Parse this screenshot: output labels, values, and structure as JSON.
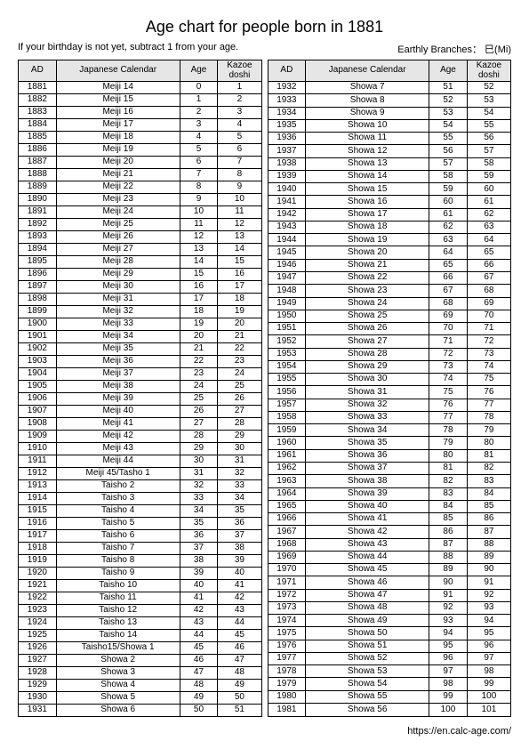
{
  "title": "Age chart for people born in 1881",
  "note": "If your birthday is not yet, subtract 1 from your age.",
  "branches": "Earthly Branches： 巳(Mi)",
  "footer": "https://en.calc-age.com/",
  "headers": {
    "ad": "AD",
    "jc": "Japanese Calendar",
    "age": "Age",
    "kazoe1": "Kazoe",
    "kazoe2": "doshi"
  },
  "left": [
    {
      "ad": "1881",
      "jc": "Meiji 14",
      "age": "0",
      "kz": "1"
    },
    {
      "ad": "1882",
      "jc": "Meiji 15",
      "age": "1",
      "kz": "2"
    },
    {
      "ad": "1883",
      "jc": "Meiji 16",
      "age": "2",
      "kz": "3"
    },
    {
      "ad": "1884",
      "jc": "Meiji 17",
      "age": "3",
      "kz": "4"
    },
    {
      "ad": "1885",
      "jc": "Meiji 18",
      "age": "4",
      "kz": "5"
    },
    {
      "ad": "1886",
      "jc": "Meiji 19",
      "age": "5",
      "kz": "6"
    },
    {
      "ad": "1887",
      "jc": "Meiji 20",
      "age": "6",
      "kz": "7"
    },
    {
      "ad": "1888",
      "jc": "Meiji 21",
      "age": "7",
      "kz": "8"
    },
    {
      "ad": "1889",
      "jc": "Meiji 22",
      "age": "8",
      "kz": "9"
    },
    {
      "ad": "1890",
      "jc": "Meiji 23",
      "age": "9",
      "kz": "10"
    },
    {
      "ad": "1891",
      "jc": "Meiji 24",
      "age": "10",
      "kz": "11"
    },
    {
      "ad": "1892",
      "jc": "Meiji 25",
      "age": "11",
      "kz": "12"
    },
    {
      "ad": "1893",
      "jc": "Meiji 26",
      "age": "12",
      "kz": "13"
    },
    {
      "ad": "1894",
      "jc": "Meiji 27",
      "age": "13",
      "kz": "14"
    },
    {
      "ad": "1895",
      "jc": "Meiji 28",
      "age": "14",
      "kz": "15"
    },
    {
      "ad": "1896",
      "jc": "Meiji 29",
      "age": "15",
      "kz": "16"
    },
    {
      "ad": "1897",
      "jc": "Meiji 30",
      "age": "16",
      "kz": "17"
    },
    {
      "ad": "1898",
      "jc": "Meiji 31",
      "age": "17",
      "kz": "18"
    },
    {
      "ad": "1899",
      "jc": "Meiji 32",
      "age": "18",
      "kz": "19"
    },
    {
      "ad": "1900",
      "jc": "Meiji 33",
      "age": "19",
      "kz": "20"
    },
    {
      "ad": "1901",
      "jc": "Meiji 34",
      "age": "20",
      "kz": "21"
    },
    {
      "ad": "1902",
      "jc": "Meiji 35",
      "age": "21",
      "kz": "22"
    },
    {
      "ad": "1903",
      "jc": "Meiji 36",
      "age": "22",
      "kz": "23"
    },
    {
      "ad": "1904",
      "jc": "Meiji 37",
      "age": "23",
      "kz": "24"
    },
    {
      "ad": "1905",
      "jc": "Meiji 38",
      "age": "24",
      "kz": "25"
    },
    {
      "ad": "1906",
      "jc": "Meiji 39",
      "age": "25",
      "kz": "26"
    },
    {
      "ad": "1907",
      "jc": "Meiji 40",
      "age": "26",
      "kz": "27"
    },
    {
      "ad": "1908",
      "jc": "Meiji 41",
      "age": "27",
      "kz": "28"
    },
    {
      "ad": "1909",
      "jc": "Meiji 42",
      "age": "28",
      "kz": "29"
    },
    {
      "ad": "1910",
      "jc": "Meiji 43",
      "age": "29",
      "kz": "30"
    },
    {
      "ad": "1911",
      "jc": "Meiji 44",
      "age": "30",
      "kz": "31"
    },
    {
      "ad": "1912",
      "jc": "Meiji 45/Tasho 1",
      "age": "31",
      "kz": "32"
    },
    {
      "ad": "1913",
      "jc": "Taisho 2",
      "age": "32",
      "kz": "33"
    },
    {
      "ad": "1914",
      "jc": "Taisho 3",
      "age": "33",
      "kz": "34"
    },
    {
      "ad": "1915",
      "jc": "Taisho 4",
      "age": "34",
      "kz": "35"
    },
    {
      "ad": "1916",
      "jc": "Taisho 5",
      "age": "35",
      "kz": "36"
    },
    {
      "ad": "1917",
      "jc": "Taisho 6",
      "age": "36",
      "kz": "37"
    },
    {
      "ad": "1918",
      "jc": "Taisho 7",
      "age": "37",
      "kz": "38"
    },
    {
      "ad": "1919",
      "jc": "Taisho 8",
      "age": "38",
      "kz": "39"
    },
    {
      "ad": "1920",
      "jc": "Taisho 9",
      "age": "39",
      "kz": "40"
    },
    {
      "ad": "1921",
      "jc": "Taisho 10",
      "age": "40",
      "kz": "41"
    },
    {
      "ad": "1922",
      "jc": "Taisho 11",
      "age": "41",
      "kz": "42"
    },
    {
      "ad": "1923",
      "jc": "Taisho 12",
      "age": "42",
      "kz": "43"
    },
    {
      "ad": "1924",
      "jc": "Taisho 13",
      "age": "43",
      "kz": "44"
    },
    {
      "ad": "1925",
      "jc": "Taisho 14",
      "age": "44",
      "kz": "45"
    },
    {
      "ad": "1926",
      "jc": "Taisho15/Showa 1",
      "age": "45",
      "kz": "46"
    },
    {
      "ad": "1927",
      "jc": "Showa 2",
      "age": "46",
      "kz": "47"
    },
    {
      "ad": "1928",
      "jc": "Showa 3",
      "age": "47",
      "kz": "48"
    },
    {
      "ad": "1929",
      "jc": "Showa 4",
      "age": "48",
      "kz": "49"
    },
    {
      "ad": "1930",
      "jc": "Showa 5",
      "age": "49",
      "kz": "50"
    },
    {
      "ad": "1931",
      "jc": "Showa 6",
      "age": "50",
      "kz": "51"
    }
  ],
  "right": [
    {
      "ad": "1932",
      "jc": "Showa 7",
      "age": "51",
      "kz": "52"
    },
    {
      "ad": "1933",
      "jc": "Showa 8",
      "age": "52",
      "kz": "53"
    },
    {
      "ad": "1934",
      "jc": "Showa 9",
      "age": "53",
      "kz": "54"
    },
    {
      "ad": "1935",
      "jc": "Showa 10",
      "age": "54",
      "kz": "55"
    },
    {
      "ad": "1936",
      "jc": "Showa 11",
      "age": "55",
      "kz": "56"
    },
    {
      "ad": "1937",
      "jc": "Showa 12",
      "age": "56",
      "kz": "57"
    },
    {
      "ad": "1938",
      "jc": "Showa 13",
      "age": "57",
      "kz": "58"
    },
    {
      "ad": "1939",
      "jc": "Showa 14",
      "age": "58",
      "kz": "59"
    },
    {
      "ad": "1940",
      "jc": "Showa 15",
      "age": "59",
      "kz": "60"
    },
    {
      "ad": "1941",
      "jc": "Showa 16",
      "age": "60",
      "kz": "61"
    },
    {
      "ad": "1942",
      "jc": "Showa 17",
      "age": "61",
      "kz": "62"
    },
    {
      "ad": "1943",
      "jc": "Showa 18",
      "age": "62",
      "kz": "63"
    },
    {
      "ad": "1944",
      "jc": "Showa 19",
      "age": "63",
      "kz": "64"
    },
    {
      "ad": "1945",
      "jc": "Showa 20",
      "age": "64",
      "kz": "65"
    },
    {
      "ad": "1946",
      "jc": "Showa 21",
      "age": "65",
      "kz": "66"
    },
    {
      "ad": "1947",
      "jc": "Showa 22",
      "age": "66",
      "kz": "67"
    },
    {
      "ad": "1948",
      "jc": "Showa 23",
      "age": "67",
      "kz": "68"
    },
    {
      "ad": "1949",
      "jc": "Showa 24",
      "age": "68",
      "kz": "69"
    },
    {
      "ad": "1950",
      "jc": "Showa 25",
      "age": "69",
      "kz": "70"
    },
    {
      "ad": "1951",
      "jc": "Showa 26",
      "age": "70",
      "kz": "71"
    },
    {
      "ad": "1952",
      "jc": "Showa 27",
      "age": "71",
      "kz": "72"
    },
    {
      "ad": "1953",
      "jc": "Showa 28",
      "age": "72",
      "kz": "73"
    },
    {
      "ad": "1954",
      "jc": "Showa 29",
      "age": "73",
      "kz": "74"
    },
    {
      "ad": "1955",
      "jc": "Showa 30",
      "age": "74",
      "kz": "75"
    },
    {
      "ad": "1956",
      "jc": "Showa 31",
      "age": "75",
      "kz": "76"
    },
    {
      "ad": "1957",
      "jc": "Showa 32",
      "age": "76",
      "kz": "77"
    },
    {
      "ad": "1958",
      "jc": "Showa 33",
      "age": "77",
      "kz": "78"
    },
    {
      "ad": "1959",
      "jc": "Showa 34",
      "age": "78",
      "kz": "79"
    },
    {
      "ad": "1960",
      "jc": "Showa 35",
      "age": "79",
      "kz": "80"
    },
    {
      "ad": "1961",
      "jc": "Showa 36",
      "age": "80",
      "kz": "81"
    },
    {
      "ad": "1962",
      "jc": "Showa 37",
      "age": "81",
      "kz": "82"
    },
    {
      "ad": "1963",
      "jc": "Showa 38",
      "age": "82",
      "kz": "83"
    },
    {
      "ad": "1964",
      "jc": "Showa 39",
      "age": "83",
      "kz": "84"
    },
    {
      "ad": "1965",
      "jc": "Showa 40",
      "age": "84",
      "kz": "85"
    },
    {
      "ad": "1966",
      "jc": "Showa 41",
      "age": "85",
      "kz": "86"
    },
    {
      "ad": "1967",
      "jc": "Showa 42",
      "age": "86",
      "kz": "87"
    },
    {
      "ad": "1968",
      "jc": "Showa 43",
      "age": "87",
      "kz": "88"
    },
    {
      "ad": "1969",
      "jc": "Showa 44",
      "age": "88",
      "kz": "89"
    },
    {
      "ad": "1970",
      "jc": "Showa 45",
      "age": "89",
      "kz": "90"
    },
    {
      "ad": "1971",
      "jc": "Showa 46",
      "age": "90",
      "kz": "91"
    },
    {
      "ad": "1972",
      "jc": "Showa 47",
      "age": "91",
      "kz": "92"
    },
    {
      "ad": "1973",
      "jc": "Showa 48",
      "age": "92",
      "kz": "93"
    },
    {
      "ad": "1974",
      "jc": "Showa 49",
      "age": "93",
      "kz": "94"
    },
    {
      "ad": "1975",
      "jc": "Showa 50",
      "age": "94",
      "kz": "95"
    },
    {
      "ad": "1976",
      "jc": "Showa 51",
      "age": "95",
      "kz": "96"
    },
    {
      "ad": "1977",
      "jc": "Showa 52",
      "age": "96",
      "kz": "97"
    },
    {
      "ad": "1978",
      "jc": "Showa 53",
      "age": "97",
      "kz": "98"
    },
    {
      "ad": "1979",
      "jc": "Showa 54",
      "age": "98",
      "kz": "99"
    },
    {
      "ad": "1980",
      "jc": "Showa 55",
      "age": "99",
      "kz": "100"
    },
    {
      "ad": "1981",
      "jc": "Showa 56",
      "age": "100",
      "kz": "101"
    }
  ]
}
